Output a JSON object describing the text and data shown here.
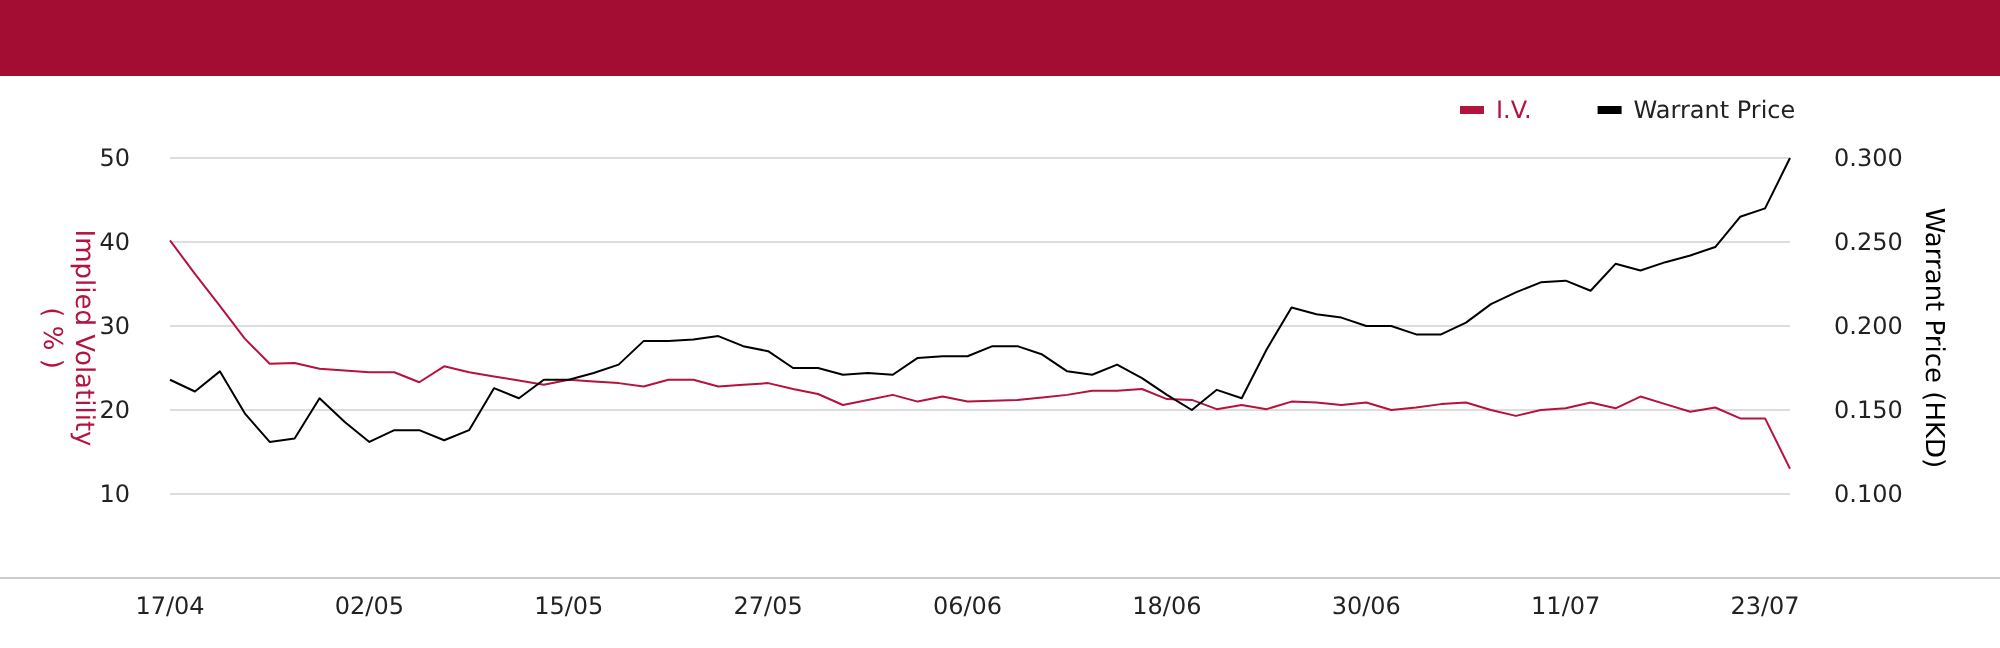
{
  "chart_data": {
    "type": "line",
    "ylabel": "Implied Volatility\n( % )",
    "y2label": "Warrant Price (HKD)",
    "categories": [
      "17/04",
      null,
      null,
      null,
      null,
      null,
      null,
      null,
      "02/05",
      null,
      null,
      null,
      null,
      null,
      null,
      null,
      "15/05",
      null,
      null,
      null,
      null,
      null,
      null,
      null,
      "27/05",
      null,
      null,
      null,
      null,
      null,
      null,
      null,
      "06/06",
      null,
      null,
      null,
      null,
      null,
      null,
      null,
      "18/06",
      null,
      null,
      null,
      null,
      null,
      null,
      null,
      "30/06",
      null,
      null,
      null,
      null,
      null,
      null,
      null,
      "11/07",
      null,
      null,
      null,
      null,
      null,
      null,
      null,
      "23/07",
      null
    ],
    "series": [
      {
        "name": "I.V.",
        "color": "#b5123f",
        "values": [
          40.2,
          36.2,
          32.4,
          28.5,
          25.5,
          25.6,
          24.9,
          24.7,
          24.5,
          24.5,
          23.3,
          25.2,
          24.5,
          24.0,
          23.5,
          23.0,
          23.6,
          23.4,
          23.2,
          22.8,
          23.6,
          23.6,
          22.8,
          23.0,
          23.2,
          22.5,
          21.9,
          20.6,
          21.2,
          21.8,
          21.0,
          21.6,
          21.0,
          21.1,
          21.2,
          21.5,
          21.8,
          22.3,
          22.3,
          22.5,
          21.3,
          21.2,
          20.1,
          20.6,
          20.1,
          21.0,
          20.9,
          20.6,
          20.9,
          20.0,
          20.3,
          20.7,
          20.9,
          20.0,
          19.3,
          20.0,
          20.2,
          20.9,
          20.2,
          21.6,
          20.7,
          19.8,
          20.3,
          19.0,
          19.0,
          13.0
        ]
      },
      {
        "name": "Warrant Price",
        "color": "#000000",
        "axis": "y2",
        "values": [
          0.168,
          0.161,
          0.173,
          0.148,
          0.131,
          0.133,
          0.157,
          0.143,
          0.131,
          0.138,
          0.138,
          0.132,
          0.138,
          0.163,
          0.157,
          0.168,
          0.168,
          0.172,
          0.177,
          0.191,
          0.191,
          0.192,
          0.194,
          0.188,
          0.185,
          0.175,
          0.175,
          0.171,
          0.172,
          0.171,
          0.181,
          0.182,
          0.182,
          0.188,
          0.188,
          0.183,
          0.173,
          0.171,
          0.177,
          0.169,
          0.159,
          0.15,
          0.162,
          0.157,
          0.186,
          0.211,
          0.207,
          0.205,
          0.2,
          0.2,
          0.195,
          0.195,
          0.202,
          0.213,
          0.22,
          0.226,
          0.227,
          0.221,
          0.237,
          0.233,
          0.238,
          0.242,
          0.247,
          0.265,
          0.27,
          0.3
        ]
      }
    ],
    "ylim": [
      0,
      50
    ],
    "yticks": [
      10,
      20,
      30,
      40,
      50
    ],
    "y2lim": [
      0.05,
      0.3
    ],
    "y2ticks": [
      {
        "value": 0.1,
        "label": "0.100"
      },
      {
        "value": 0.15,
        "label": "0.150"
      },
      {
        "value": 0.2,
        "label": "0.200"
      },
      {
        "value": 0.25,
        "label": "0.250"
      },
      {
        "value": 0.3,
        "label": "0.300"
      }
    ],
    "grid": "y",
    "legend": "top right",
    "marker": "none",
    "line_style": "solid"
  }
}
